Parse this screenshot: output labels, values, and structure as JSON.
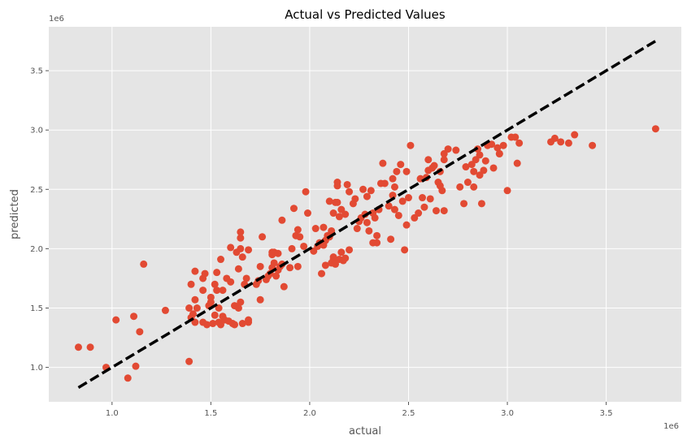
{
  "chart_data": {
    "type": "scatter",
    "title": "Actual vs Predicted Values",
    "xlabel": "actual",
    "ylabel": "predicted",
    "x_offset_label": "1e6",
    "y_offset_label": "1e6",
    "xlim": [
      0.68,
      3.88
    ],
    "ylim": [
      0.71,
      3.87
    ],
    "x_ticks": [
      1.0,
      1.5,
      2.0,
      2.5,
      3.0,
      3.5
    ],
    "x_tick_labels": [
      "1.0",
      "1.5",
      "2.0",
      "2.5",
      "3.0",
      "3.5"
    ],
    "y_ticks": [
      1.0,
      1.5,
      2.0,
      2.5,
      3.0,
      3.5
    ],
    "y_tick_labels": [
      "1.0",
      "1.5",
      "2.0",
      "2.5",
      "3.0",
      "3.5"
    ],
    "grid": true,
    "background": "#e5e5e5",
    "point_color": "#e24a33",
    "line_color": "#000000",
    "reference_line": {
      "x": [
        0.83,
        3.75
      ],
      "y": [
        0.83,
        3.75
      ],
      "style": "dashed"
    },
    "points": [
      [
        0.83,
        1.17
      ],
      [
        0.89,
        1.17
      ],
      [
        0.97,
        1.0
      ],
      [
        1.02,
        1.4
      ],
      [
        1.08,
        0.91
      ],
      [
        1.11,
        1.43
      ],
      [
        1.12,
        1.01
      ],
      [
        1.14,
        1.3
      ],
      [
        1.16,
        1.87
      ],
      [
        1.27,
        1.48
      ],
      [
        1.39,
        1.05
      ],
      [
        1.39,
        1.5
      ],
      [
        1.4,
        1.7
      ],
      [
        1.4,
        1.42
      ],
      [
        1.41,
        1.45
      ],
      [
        1.42,
        1.38
      ],
      [
        1.42,
        1.57
      ],
      [
        1.42,
        1.81
      ],
      [
        1.43,
        1.5
      ],
      [
        1.46,
        1.38
      ],
      [
        1.46,
        1.65
      ],
      [
        1.46,
        1.75
      ],
      [
        1.47,
        1.79
      ],
      [
        1.48,
        1.36
      ],
      [
        1.49,
        1.52
      ],
      [
        1.5,
        1.59
      ],
      [
        1.5,
        1.55
      ],
      [
        1.51,
        1.37
      ],
      [
        1.52,
        1.44
      ],
      [
        1.52,
        1.7
      ],
      [
        1.53,
        1.8
      ],
      [
        1.53,
        1.65
      ],
      [
        1.54,
        1.38
      ],
      [
        1.54,
        1.5
      ],
      [
        1.55,
        1.36
      ],
      [
        1.55,
        1.91
      ],
      [
        1.56,
        1.43
      ],
      [
        1.56,
        1.65
      ],
      [
        1.57,
        1.4
      ],
      [
        1.58,
        1.75
      ],
      [
        1.59,
        1.39
      ],
      [
        1.6,
        1.72
      ],
      [
        1.6,
        2.01
      ],
      [
        1.61,
        1.37
      ],
      [
        1.62,
        1.36
      ],
      [
        1.62,
        1.52
      ],
      [
        1.63,
        1.97
      ],
      [
        1.64,
        1.5
      ],
      [
        1.64,
        1.83
      ],
      [
        1.65,
        1.55
      ],
      [
        1.65,
        2.0
      ],
      [
        1.65,
        2.09
      ],
      [
        1.65,
        2.14
      ],
      [
        1.66,
        1.37
      ],
      [
        1.66,
        1.93
      ],
      [
        1.67,
        1.7
      ],
      [
        1.68,
        1.75
      ],
      [
        1.69,
        1.38
      ],
      [
        1.69,
        1.4
      ],
      [
        1.69,
        1.99
      ],
      [
        1.73,
        1.7
      ],
      [
        1.74,
        1.73
      ],
      [
        1.75,
        1.57
      ],
      [
        1.75,
        1.85
      ],
      [
        1.76,
        2.1
      ],
      [
        1.78,
        1.74
      ],
      [
        1.79,
        1.77
      ],
      [
        1.8,
        1.79
      ],
      [
        1.81,
        1.84
      ],
      [
        1.81,
        1.97
      ],
      [
        1.81,
        1.95
      ],
      [
        1.82,
        1.88
      ],
      [
        1.82,
        1.97
      ],
      [
        1.83,
        1.77
      ],
      [
        1.84,
        1.82
      ],
      [
        1.84,
        1.96
      ],
      [
        1.85,
        1.85
      ],
      [
        1.86,
        1.87
      ],
      [
        1.86,
        2.24
      ],
      [
        1.87,
        1.68
      ],
      [
        1.9,
        1.84
      ],
      [
        1.91,
        2.0
      ],
      [
        1.92,
        2.34
      ],
      [
        1.93,
        2.11
      ],
      [
        1.94,
        2.16
      ],
      [
        1.94,
        1.85
      ],
      [
        1.95,
        2.1
      ],
      [
        1.97,
        2.02
      ],
      [
        1.98,
        2.48
      ],
      [
        1.99,
        2.3
      ],
      [
        2.02,
        1.98
      ],
      [
        2.03,
        2.17
      ],
      [
        2.04,
        2.02
      ],
      [
        2.05,
        2.05
      ],
      [
        2.06,
        1.79
      ],
      [
        2.07,
        2.18
      ],
      [
        2.07,
        2.03
      ],
      [
        2.08,
        1.86
      ],
      [
        2.08,
        2.07
      ],
      [
        2.09,
        2.11
      ],
      [
        2.1,
        2.4
      ],
      [
        2.1,
        2.1
      ],
      [
        2.11,
        1.88
      ],
      [
        2.11,
        2.15
      ],
      [
        2.12,
        1.91
      ],
      [
        2.12,
        2.3
      ],
      [
        2.12,
        1.93
      ],
      [
        2.13,
        2.39
      ],
      [
        2.13,
        1.87
      ],
      [
        2.14,
        2.39
      ],
      [
        2.14,
        2.53
      ],
      [
        2.14,
        2.56
      ],
      [
        2.15,
        2.27
      ],
      [
        2.15,
        1.91
      ],
      [
        2.16,
        1.97
      ],
      [
        2.16,
        2.33
      ],
      [
        2.17,
        1.9
      ],
      [
        2.18,
        1.92
      ],
      [
        2.18,
        2.29
      ],
      [
        2.19,
        2.54
      ],
      [
        2.2,
        1.99
      ],
      [
        2.2,
        2.48
      ],
      [
        2.22,
        2.38
      ],
      [
        2.23,
        2.42
      ],
      [
        2.24,
        2.17
      ],
      [
        2.25,
        2.23
      ],
      [
        2.26,
        2.26
      ],
      [
        2.27,
        2.5
      ],
      [
        2.28,
        2.29
      ],
      [
        2.29,
        2.44
      ],
      [
        2.29,
        2.22
      ],
      [
        2.3,
        2.15
      ],
      [
        2.31,
        2.49
      ],
      [
        2.32,
        2.3
      ],
      [
        2.32,
        2.05
      ],
      [
        2.33,
        2.26
      ],
      [
        2.34,
        2.05
      ],
      [
        2.34,
        2.11
      ],
      [
        2.35,
        2.33
      ],
      [
        2.36,
        2.55
      ],
      [
        2.37,
        2.72
      ],
      [
        2.38,
        2.55
      ],
      [
        2.4,
        2.36
      ],
      [
        2.41,
        2.08
      ],
      [
        2.42,
        2.59
      ],
      [
        2.42,
        2.45
      ],
      [
        2.43,
        2.33
      ],
      [
        2.43,
        2.52
      ],
      [
        2.44,
        2.65
      ],
      [
        2.45,
        2.28
      ],
      [
        2.46,
        2.71
      ],
      [
        2.47,
        2.4
      ],
      [
        2.48,
        1.99
      ],
      [
        2.49,
        2.65
      ],
      [
        2.49,
        2.2
      ],
      [
        2.5,
        2.43
      ],
      [
        2.51,
        2.87
      ],
      [
        2.53,
        2.26
      ],
      [
        2.55,
        2.3
      ],
      [
        2.56,
        2.59
      ],
      [
        2.57,
        2.43
      ],
      [
        2.58,
        2.35
      ],
      [
        2.59,
        2.6
      ],
      [
        2.6,
        2.66
      ],
      [
        2.6,
        2.75
      ],
      [
        2.61,
        2.42
      ],
      [
        2.62,
        2.68
      ],
      [
        2.63,
        2.7
      ],
      [
        2.64,
        2.32
      ],
      [
        2.65,
        2.56
      ],
      [
        2.66,
        2.53
      ],
      [
        2.66,
        2.65
      ],
      [
        2.67,
        2.49
      ],
      [
        2.68,
        2.75
      ],
      [
        2.68,
        2.8
      ],
      [
        2.68,
        2.32
      ],
      [
        2.7,
        2.84
      ],
      [
        2.74,
        2.83
      ],
      [
        2.76,
        2.52
      ],
      [
        2.78,
        2.38
      ],
      [
        2.79,
        2.69
      ],
      [
        2.8,
        2.56
      ],
      [
        2.82,
        2.71
      ],
      [
        2.83,
        2.65
      ],
      [
        2.83,
        2.52
      ],
      [
        2.84,
        2.75
      ],
      [
        2.85,
        2.84
      ],
      [
        2.86,
        2.62
      ],
      [
        2.86,
        2.79
      ],
      [
        2.87,
        2.38
      ],
      [
        2.88,
        2.66
      ],
      [
        2.89,
        2.74
      ],
      [
        2.9,
        2.87
      ],
      [
        2.92,
        2.88
      ],
      [
        2.93,
        2.68
      ],
      [
        2.95,
        2.85
      ],
      [
        2.96,
        2.8
      ],
      [
        2.96,
        2.8
      ],
      [
        2.98,
        2.87
      ],
      [
        3.0,
        2.49
      ],
      [
        3.02,
        2.94
      ],
      [
        3.04,
        2.94
      ],
      [
        3.05,
        2.72
      ],
      [
        3.06,
        2.89
      ],
      [
        3.22,
        2.9
      ],
      [
        3.24,
        2.93
      ],
      [
        3.27,
        2.9
      ],
      [
        3.31,
        2.89
      ],
      [
        3.34,
        2.96
      ],
      [
        3.43,
        2.87
      ],
      [
        3.75,
        3.01
      ]
    ]
  }
}
